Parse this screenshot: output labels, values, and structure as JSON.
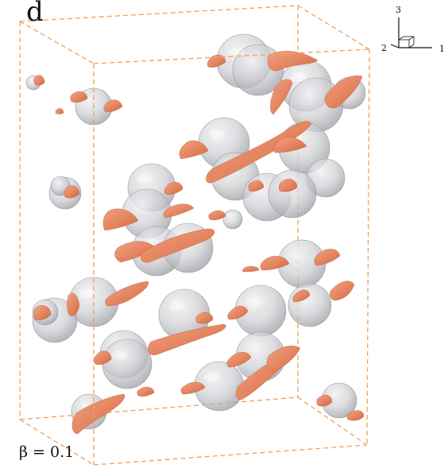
{
  "figure": {
    "panel_label": "d",
    "parameter_label": "β = 0.1",
    "axis_triad": {
      "axis_1": "1",
      "axis_2": "2",
      "axis_3": "3"
    },
    "colors": {
      "box_edges": "#f0a05a",
      "spheres": "#c8c8cc",
      "vortex_structures": "#e98a66",
      "background": "#ffffff"
    },
    "spheres_visible": 33
  }
}
